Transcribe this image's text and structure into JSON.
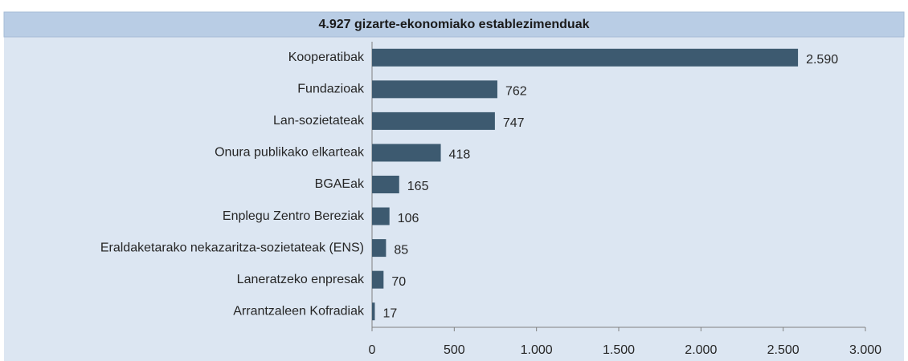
{
  "chart_data": {
    "type": "hbar",
    "title": "4.927 gizarte-ekonomiako establezimenduak",
    "categories": [
      "Kooperatibak",
      "Fundazioak",
      "Lan-sozietateak",
      "Onura publikako elkarteak",
      "BGAEak",
      "Enplegu Zentro Bereziak",
      "Eraldaketarako nekazaritza-sozietateak (ENS)",
      "Laneratzeko enpresak",
      "Arrantzaleen Kofradiak"
    ],
    "values": [
      2590,
      762,
      747,
      418,
      165,
      106,
      85,
      70,
      17
    ],
    "value_labels": [
      "2.590",
      "762",
      "747",
      "418",
      "165",
      "106",
      "85",
      "70",
      "17"
    ],
    "color": "#3d5a70",
    "xlim": [
      0,
      3000
    ],
    "xticks": [
      0,
      500,
      {
        "value": 1000,
        "label": "1.000"
      },
      {
        "value": 1500,
        "label": "1.500"
      },
      {
        "value": 2000,
        "label": "2.000"
      },
      {
        "value": 2500,
        "label": "2.500"
      },
      {
        "value": 3000,
        "label": "3.000"
      }
    ]
  }
}
